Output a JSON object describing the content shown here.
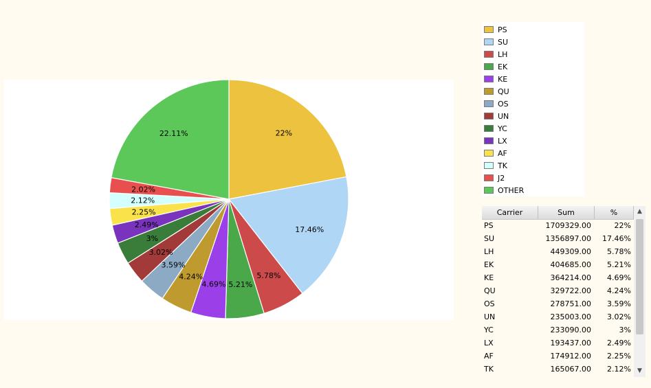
{
  "chart_data": {
    "type": "pie",
    "slices": [
      {
        "label": "PS",
        "value": 22,
        "display": "22%",
        "color": "#ecc23e"
      },
      {
        "label": "SU",
        "value": 17.46,
        "display": "17.46%",
        "color": "#b0d6f5"
      },
      {
        "label": "LH",
        "value": 5.78,
        "display": "5.78%",
        "color": "#cc4a4a"
      },
      {
        "label": "EK",
        "value": 5.21,
        "display": "5.21%",
        "color": "#4aa84a"
      },
      {
        "label": "KE",
        "value": 4.69,
        "display": "4.69%",
        "color": "#9b3fe8"
      },
      {
        "label": "QU",
        "value": 4.24,
        "display": "4.24%",
        "color": "#bf9a2e"
      },
      {
        "label": "OS",
        "value": 3.59,
        "display": "3.59%",
        "color": "#8caac4"
      },
      {
        "label": "UN",
        "value": 3.02,
        "display": "3.02%",
        "color": "#a33a3a"
      },
      {
        "label": "YC",
        "value": 3,
        "display": "3%",
        "color": "#3a7d3a"
      },
      {
        "label": "LX",
        "value": 2.49,
        "display": "2.49%",
        "color": "#7a33bd"
      },
      {
        "label": "AF",
        "value": 2.25,
        "display": "2.25%",
        "color": "#f9e24a"
      },
      {
        "label": "TK",
        "value": 2.12,
        "display": "2.12%",
        "color": "#d4ffff"
      },
      {
        "label": "J2",
        "value": 2.02,
        "display": "2.02%",
        "color": "#e84f4f"
      },
      {
        "label": "OTHER",
        "value": 22.11,
        "display": "22.11%",
        "color": "#5cc85a"
      }
    ],
    "legend_position": "top-right"
  },
  "table": {
    "headers": [
      "Carrier",
      "Sum",
      "%"
    ],
    "rows": [
      [
        "PS",
        "1709329.00",
        "22%"
      ],
      [
        "SU",
        "1356897.00",
        "17.46%"
      ],
      [
        "LH",
        "449309.00",
        "5.78%"
      ],
      [
        "EK",
        "404685.00",
        "5.21%"
      ],
      [
        "KE",
        "364214.00",
        "4.69%"
      ],
      [
        "QU",
        "329722.00",
        "4.24%"
      ],
      [
        "OS",
        "278751.00",
        "3.59%"
      ],
      [
        "UN",
        "235003.00",
        "3.02%"
      ],
      [
        "YC",
        "233090.00",
        "3%"
      ],
      [
        "LX",
        "193437.00",
        "2.49%"
      ],
      [
        "AF",
        "174912.00",
        "2.25%"
      ],
      [
        "TK",
        "165067.00",
        "2.12%"
      ]
    ]
  },
  "scrollbar": {
    "up_icon": "arrow-up-icon",
    "down_icon": "arrow-down-icon",
    "up_glyph": "▲",
    "down_glyph": "▼"
  }
}
